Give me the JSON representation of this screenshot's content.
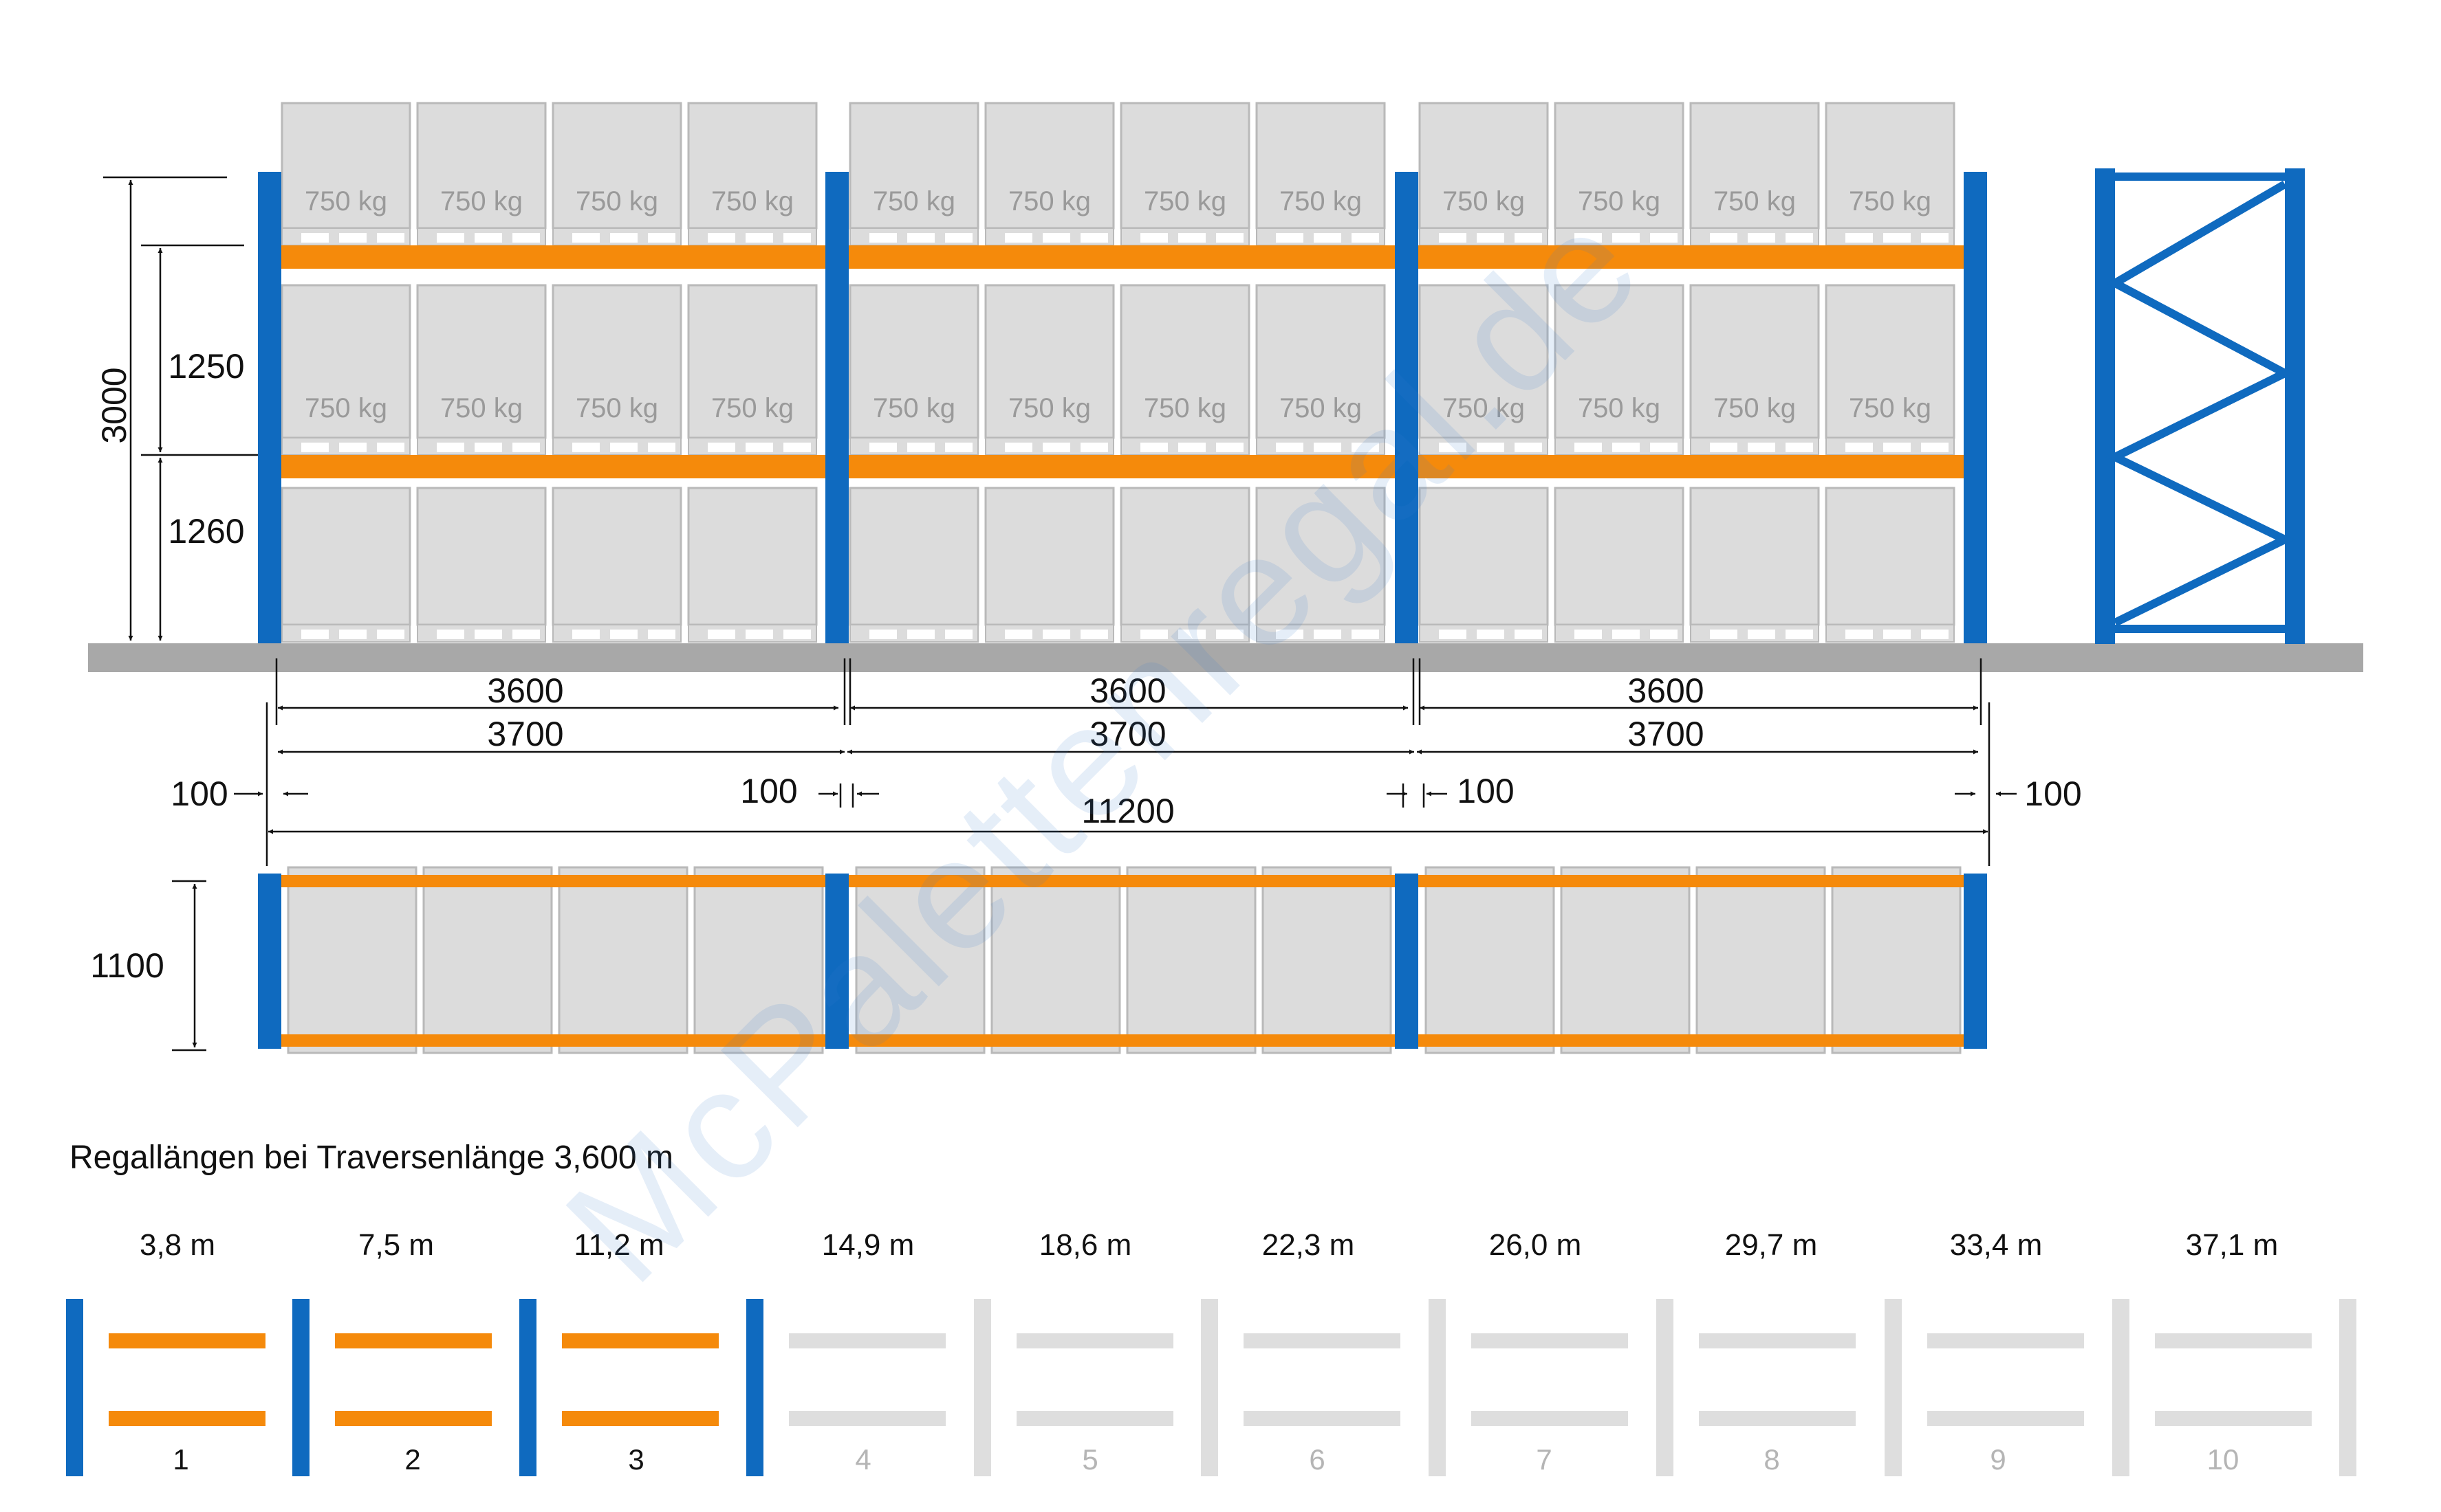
{
  "colors": {
    "upright": "#0f6abf",
    "beam": "#f58a0b",
    "floor": "#a8a8a8",
    "pallet": "#dcdcdc",
    "pallet_stroke": "#b9b9b9",
    "inactive": "#dedede",
    "watermark": "#3c7fd0"
  },
  "front_view": {
    "load_label": "750 kg",
    "dimensions": {
      "total_height": "3000",
      "level_2_height": "1250",
      "level_1_height": "1260",
      "bay_beam_length": [
        "3600",
        "3600",
        "3600"
      ],
      "bay_axis_length": [
        "3700",
        "3700",
        "3700"
      ],
      "clearances": [
        "100",
        "100",
        "100",
        "100"
      ],
      "total_length": "11200"
    }
  },
  "top_view": {
    "depth": "1100"
  },
  "lengths_table": {
    "heading": "Regallängen bei Traversenlänge 3,600 m",
    "lengths": [
      "3,8 m",
      "7,5 m",
      "11,2 m",
      "14,9 m",
      "18,6 m",
      "22,3 m",
      "26,0 m",
      "29,7 m",
      "33,4 m",
      "37,1 m"
    ],
    "numbers": [
      "1",
      "2",
      "3",
      "4",
      "5",
      "6",
      "7",
      "8",
      "9",
      "10"
    ],
    "active_count": 3
  },
  "watermark": "McPalettenregal.de"
}
